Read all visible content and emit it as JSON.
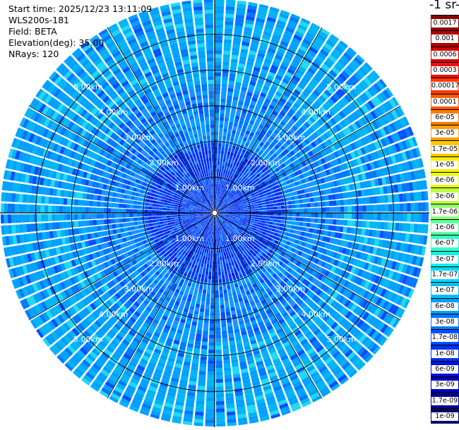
{
  "header": {
    "start_time": "Start time: 2025/12/23 13:11:09",
    "instrument": "WLS200s-181",
    "field": "Field: BETA",
    "elevation": "Elevation(deg): 35.00",
    "nrays": "NRays: 120"
  },
  "colorbar": {
    "title": "-1 sr-",
    "entries": [
      {
        "label": "0.0017",
        "color": "#8b0000"
      },
      {
        "label": "0.001",
        "color": "#b00000"
      },
      {
        "label": "0.0006",
        "color": "#d40000"
      },
      {
        "label": "0.0003",
        "color": "#f01010"
      },
      {
        "label": "0.00017",
        "color": "#ff3a00"
      },
      {
        "label": "0.0001",
        "color": "#ff5a00"
      },
      {
        "label": "6e-05",
        "color": "#ff7a00"
      },
      {
        "label": "3e-05",
        "color": "#ffa000"
      },
      {
        "label": "1.7e-05",
        "color": "#ffc800"
      },
      {
        "label": "1e-05",
        "color": "#ffee00"
      },
      {
        "label": "6e-06",
        "color": "#e6ff1a"
      },
      {
        "label": "3e-06",
        "color": "#c0ff40"
      },
      {
        "label": "1.7e-06",
        "color": "#90ff70"
      },
      {
        "label": "1e-06",
        "color": "#60ffa0"
      },
      {
        "label": "6e-07",
        "color": "#30ffc8"
      },
      {
        "label": "3e-07",
        "color": "#10f0e6"
      },
      {
        "label": "1.7e-07",
        "color": "#00d8f5"
      },
      {
        "label": "1e-07",
        "color": "#00bff7"
      },
      {
        "label": "6e-08",
        "color": "#00a0ff"
      },
      {
        "label": "3e-08",
        "color": "#0078ff"
      },
      {
        "label": "1.7e-08",
        "color": "#0050ff"
      },
      {
        "label": "1e-08",
        "color": "#0030f0"
      },
      {
        "label": "6e-09",
        "color": "#0010d8"
      },
      {
        "label": "3e-09",
        "color": "#0000b8"
      },
      {
        "label": "1.7e-09",
        "color": "#000090"
      },
      {
        "label": "1e-09",
        "color": "#000068"
      }
    ]
  },
  "range_rings": [
    {
      "label": "1.00km",
      "km": 1
    },
    {
      "label": "2.00km",
      "km": 2
    },
    {
      "label": "3.00km",
      "km": 3
    },
    {
      "label": "4.00km",
      "km": 4
    },
    {
      "label": "5.00km",
      "km": 5
    }
  ],
  "ppi": {
    "max_range_km": 6.0
  }
}
